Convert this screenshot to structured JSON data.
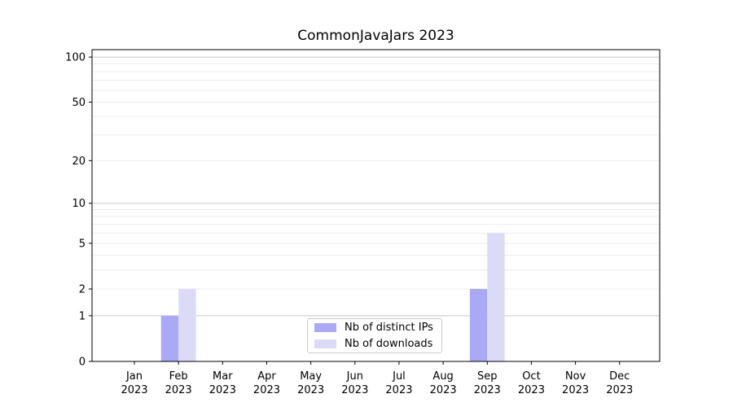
{
  "title": "CommonJavaJars 2023",
  "colors": {
    "bar_distinct_ips": "#a9a9f5",
    "bar_downloads": "#dbdbf8",
    "grid_major": "#c8c8c8",
    "grid_minor": "#ececec",
    "axis": "#000000",
    "legend_border": "#cccccc",
    "background": "#ffffff"
  },
  "legend": {
    "position": "lower center",
    "items": [
      {
        "label": "Nb of distinct IPs",
        "color_key": "bar_distinct_ips"
      },
      {
        "label": "Nb of downloads",
        "color_key": "bar_downloads"
      }
    ]
  },
  "chart_data": {
    "type": "bar",
    "title": "CommonJavaJars 2023",
    "categories": [
      "Jan 2023",
      "Feb 2023",
      "Mar 2023",
      "Apr 2023",
      "May 2023",
      "Jun 2023",
      "Jul 2023",
      "Aug 2023",
      "Sep 2023",
      "Oct 2023",
      "Nov 2023",
      "Dec 2023"
    ],
    "series": [
      {
        "name": "Nb of distinct IPs",
        "color_key": "bar_distinct_ips",
        "values": [
          0,
          1,
          0,
          0,
          0,
          0,
          0,
          0,
          2,
          0,
          0,
          0
        ]
      },
      {
        "name": "Nb of downloads",
        "color_key": "bar_downloads",
        "values": [
          0,
          2,
          0,
          0,
          0,
          0,
          0,
          0,
          6,
          0,
          0,
          0
        ]
      }
    ],
    "xlabel": "",
    "ylabel": "",
    "y_axis": {
      "scale": "log10(1+value)",
      "tick_values": [
        0,
        1,
        2,
        5,
        10,
        20,
        50,
        100
      ],
      "ylim": [
        0,
        112
      ],
      "major_grid_values": [
        1,
        10,
        100
      ],
      "minor_grid_values": [
        2,
        3,
        4,
        5,
        6,
        7,
        8,
        9,
        20,
        30,
        40,
        50,
        60,
        70,
        80,
        90
      ]
    },
    "grid": "horizontal, major and minor",
    "legend_position": "lower center"
  }
}
